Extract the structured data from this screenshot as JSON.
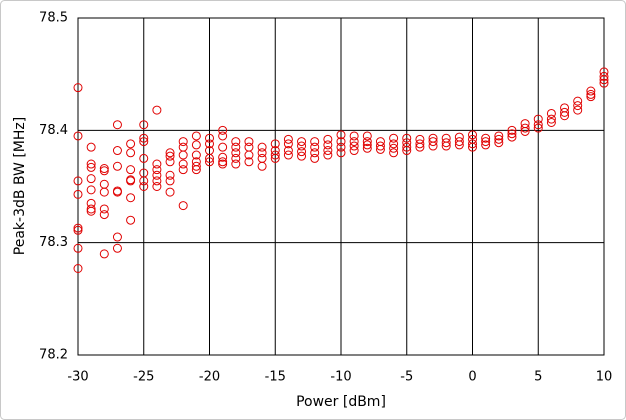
{
  "chart_data": {
    "type": "scatter",
    "x_label": "Power [dBm]",
    "y_label": "Peak-3dB BW [MHz]",
    "color": "#e00000",
    "grid": true,
    "xlim": [
      -30,
      10
    ],
    "xticks": [
      -30,
      -25,
      -20,
      -15,
      -10,
      -5,
      0,
      5,
      10
    ],
    "ylim": [
      78.2,
      78.5
    ],
    "yticks": [
      78.2,
      78.3,
      78.4,
      78.5
    ],
    "x": [
      -30,
      -30,
      -30,
      -30,
      -30,
      -30,
      -30,
      -30,
      -29,
      -29,
      -29,
      -29,
      -29,
      -29,
      -29,
      -29,
      -28,
      -28,
      -28,
      -28,
      -28,
      -28,
      -28,
      -27,
      -27,
      -27,
      -27,
      -27,
      -27,
      -27,
      -26,
      -26,
      -26,
      -26,
      -26,
      -26,
      -26,
      -25,
      -25,
      -25,
      -25,
      -25,
      -25,
      -25,
      -24,
      -24,
      -24,
      -24,
      -24,
      -24,
      -23,
      -23,
      -23,
      -23,
      -23,
      -23,
      -22,
      -22,
      -22,
      -22,
      -22,
      -22,
      -21,
      -21,
      -21,
      -21,
      -21,
      -21,
      -20,
      -20,
      -20,
      -20,
      -20,
      -19,
      -19,
      -19,
      -19,
      -19,
      -19,
      -18,
      -18,
      -18,
      -18,
      -18,
      -17,
      -17,
      -17,
      -17,
      -16,
      -16,
      -16,
      -16,
      -15,
      -15,
      -15,
      -15,
      -14,
      -14,
      -14,
      -14,
      -13,
      -13,
      -13,
      -13,
      -12,
      -12,
      -12,
      -12,
      -11,
      -11,
      -11,
      -11,
      -10,
      -10,
      -10,
      -10,
      -9,
      -9,
      -9,
      -9,
      -8,
      -8,
      -8,
      -8,
      -7,
      -7,
      -7,
      -6,
      -6,
      -6,
      -6,
      -5,
      -5,
      -5,
      -5,
      -4,
      -4,
      -4,
      -3,
      -3,
      -3,
      -2,
      -2,
      -2,
      -1,
      -1,
      -1,
      0,
      0,
      0,
      0,
      1,
      1,
      1,
      2,
      2,
      2,
      3,
      3,
      3,
      4,
      4,
      4,
      5,
      5,
      5,
      6,
      6,
      6,
      7,
      7,
      7,
      8,
      8,
      8,
      9,
      9,
      9,
      10,
      10,
      10,
      10
    ],
    "values": [
      78.438,
      78.395,
      78.355,
      78.343,
      78.313,
      78.311,
      78.295,
      78.277,
      78.385,
      78.37,
      78.367,
      78.357,
      78.347,
      78.335,
      78.33,
      78.328,
      78.366,
      78.364,
      78.352,
      78.345,
      78.33,
      78.325,
      78.29,
      78.405,
      78.382,
      78.368,
      78.346,
      78.345,
      78.305,
      78.295,
      78.388,
      78.38,
      78.365,
      78.356,
      78.355,
      78.34,
      78.32,
      78.405,
      78.393,
      78.39,
      78.375,
      78.362,
      78.355,
      78.35,
      78.418,
      78.37,
      78.365,
      78.36,
      78.355,
      78.35,
      78.38,
      78.377,
      78.372,
      78.36,
      78.355,
      78.345,
      78.39,
      78.385,
      78.378,
      78.37,
      78.365,
      78.333,
      78.395,
      78.387,
      78.378,
      78.372,
      78.368,
      78.365,
      78.393,
      78.388,
      78.382,
      78.375,
      78.372,
      78.4,
      78.395,
      78.385,
      78.376,
      78.372,
      78.37,
      78.39,
      78.385,
      78.38,
      78.375,
      78.37,
      78.39,
      78.385,
      78.378,
      78.372,
      78.385,
      78.38,
      78.375,
      78.368,
      78.388,
      78.382,
      78.378,
      78.375,
      78.392,
      78.388,
      78.382,
      78.378,
      78.39,
      78.386,
      78.381,
      78.377,
      78.39,
      78.385,
      78.38,
      78.375,
      78.392,
      78.387,
      78.382,
      78.378,
      78.396,
      78.39,
      78.385,
      78.38,
      78.395,
      78.39,
      78.386,
      78.382,
      78.395,
      78.39,
      78.387,
      78.384,
      78.39,
      78.386,
      78.383,
      78.393,
      78.388,
      78.384,
      78.38,
      78.393,
      78.389,
      78.385,
      78.382,
      78.392,
      78.388,
      78.385,
      78.393,
      78.39,
      78.386,
      78.393,
      78.389,
      78.386,
      78.394,
      78.39,
      78.387,
      78.396,
      78.392,
      78.388,
      78.385,
      78.393,
      78.39,
      78.387,
      78.395,
      78.392,
      78.389,
      78.4,
      78.397,
      78.394,
      78.406,
      78.402,
      78.399,
      78.41,
      78.405,
      78.402,
      78.415,
      78.41,
      78.407,
      78.42,
      78.416,
      78.413,
      78.426,
      78.422,
      78.418,
      78.435,
      78.432,
      78.43,
      78.452,
      78.448,
      78.445,
      78.442
    ]
  }
}
